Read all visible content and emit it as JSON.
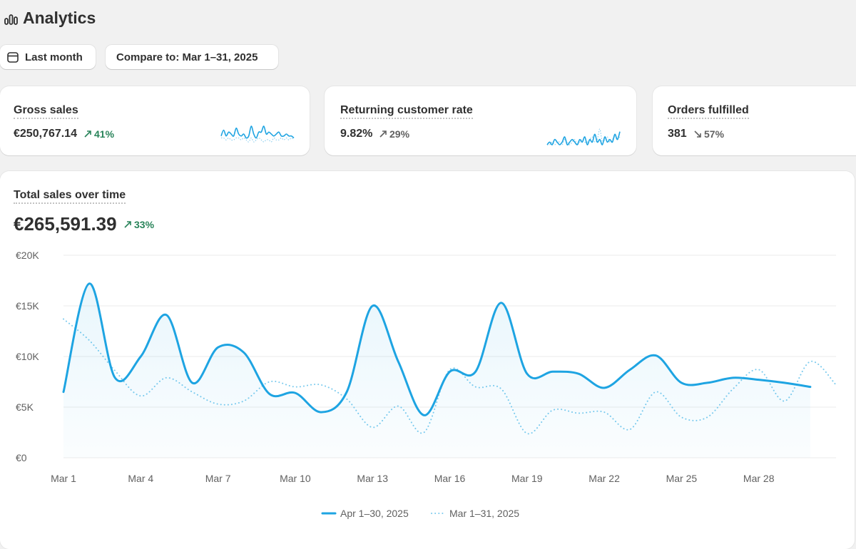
{
  "header": {
    "title": "Analytics"
  },
  "filters": {
    "date_range": "Last month",
    "compare": "Compare to: Mar 1–31, 2025"
  },
  "cards": [
    {
      "label": "Gross sales",
      "value": "€250,767.14",
      "delta": {
        "text": "41%",
        "direction": "up",
        "tone": "positive"
      },
      "sparkline": {
        "current": [
          6,
          9,
          6,
          8,
          7,
          6,
          10,
          7,
          6,
          7,
          5,
          6,
          11,
          7,
          5,
          8,
          8,
          11,
          7,
          8,
          7,
          6,
          7,
          8,
          6,
          6,
          7,
          6,
          6,
          5
        ],
        "previous": [
          5,
          5,
          4,
          5,
          4,
          4,
          5,
          5,
          4,
          5,
          4,
          3,
          5,
          3,
          4,
          5,
          4,
          3,
          4,
          4,
          3,
          5,
          4,
          4,
          5,
          4,
          5,
          4,
          5,
          4
        ]
      }
    },
    {
      "label": "Returning customer rate",
      "value": "9.82%",
      "delta": {
        "text": "29%",
        "direction": "up",
        "tone": "neutral"
      },
      "sparkline": {
        "current": [
          4,
          5,
          4,
          6,
          5,
          4,
          5,
          7,
          4,
          5,
          6,
          5,
          4,
          6,
          5,
          7,
          4,
          6,
          5,
          8,
          5,
          6,
          4,
          7,
          5,
          6,
          5,
          8,
          6,
          9
        ],
        "previous": [
          4,
          4,
          5,
          4,
          5,
          5,
          4,
          6,
          5,
          4,
          5,
          6,
          4,
          5,
          6,
          5,
          5,
          6,
          7,
          5,
          6,
          10,
          5,
          6,
          7,
          5,
          6,
          7,
          6,
          7
        ]
      }
    },
    {
      "label": "Orders fulfilled",
      "value": "381",
      "delta": {
        "text": "57%",
        "direction": "down",
        "tone": "neutral"
      }
    }
  ],
  "chart_data": {
    "type": "line",
    "title": "Total sales over time",
    "total": "€265,591.39",
    "delta": {
      "text": "33%",
      "direction": "up",
      "tone": "positive"
    },
    "categories": [
      "Mar 1",
      null,
      null,
      "Mar 4",
      null,
      null,
      "Mar 7",
      null,
      null,
      "Mar 10",
      null,
      null,
      "Mar 13",
      null,
      null,
      "Mar 16",
      null,
      null,
      "Mar 19",
      null,
      null,
      "Mar 22",
      null,
      null,
      "Mar 25",
      null,
      null,
      "Mar 28",
      null,
      null,
      null
    ],
    "series": [
      {
        "name": "Apr 1–30, 2025",
        "color": "#1ea4e2",
        "style": "solid",
        "values": [
          6500,
          17200,
          7900,
          10000,
          14100,
          7400,
          10900,
          10400,
          6300,
          6400,
          4500,
          6500,
          15000,
          9500,
          4200,
          8500,
          8500,
          15300,
          8300,
          8500,
          8300,
          6900,
          8700,
          10100,
          7400,
          7400,
          7900,
          7700,
          7400,
          7000,
          null
        ]
      },
      {
        "name": "Mar 1–31, 2025",
        "color": "#7ccbee",
        "style": "dotted",
        "values": [
          13700,
          11600,
          8600,
          6100,
          7900,
          6500,
          5300,
          5600,
          7500,
          7000,
          7200,
          5800,
          3000,
          5100,
          2500,
          8700,
          7000,
          6800,
          2400,
          4700,
          4400,
          4500,
          2800,
          6500,
          4000,
          4000,
          6800,
          8700,
          5600,
          9500,
          7200
        ]
      }
    ],
    "ylim": [
      0,
      20000
    ],
    "yticks": [
      {
        "value": 0,
        "label": "€0"
      },
      {
        "value": 5000,
        "label": "€5K"
      },
      {
        "value": 10000,
        "label": "€10K"
      },
      {
        "value": 15000,
        "label": "€15K"
      },
      {
        "value": 20000,
        "label": "€20K"
      }
    ],
    "grid": true,
    "legend": "bottom"
  }
}
